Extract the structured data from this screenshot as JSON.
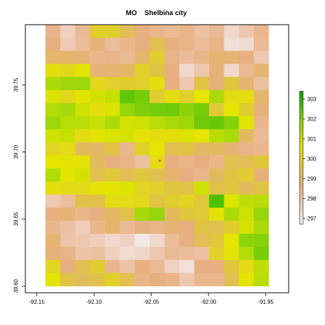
{
  "chart_data": {
    "type": "heatmap",
    "title": "MO    Shelbina city",
    "xlabel": "",
    "ylabel": "",
    "xlim": [
      -92.16,
      -91.93
    ],
    "ylim": [
      39.595,
      39.795
    ],
    "raster_extent": {
      "xmin": -92.1425,
      "xmax": -91.9475,
      "ymin": 39.6,
      "ymax": 39.795
    },
    "x_ticks": [
      {
        "value": -92.15,
        "label": "-92.15"
      },
      {
        "value": -92.1,
        "label": "-92.10"
      },
      {
        "value": -92.05,
        "label": "-92.05"
      },
      {
        "value": -92.0,
        "label": "-92.00"
      },
      {
        "value": -91.95,
        "label": "-91.95"
      }
    ],
    "y_ticks": [
      {
        "value": 39.6,
        "label": "39.60"
      },
      {
        "value": 39.65,
        "label": "39.65"
      },
      {
        "value": 39.7,
        "label": "39.70"
      },
      {
        "value": 39.75,
        "label": "39.75"
      }
    ],
    "legend": {
      "placement": "right",
      "min": 296.7,
      "max": 303.4,
      "ticks": [
        {
          "value": 297,
          "label": "297"
        },
        {
          "value": 298,
          "label": "298"
        },
        {
          "value": 299,
          "label": "299"
        },
        {
          "value": 300,
          "label": "300"
        },
        {
          "value": 301,
          "label": "301"
        },
        {
          "value": 302,
          "label": "302"
        },
        {
          "value": 303,
          "label": "303"
        }
      ]
    },
    "colormap": [
      "#f2f2f2",
      "#efcfbe",
      "#e8b07f",
      "#dfc53f",
      "#e6e600",
      "#a6d90a",
      "#5cc609",
      "#00a600"
    ],
    "point": {
      "x": -92.0425,
      "y": 39.6935,
      "color": "#ff0000"
    },
    "rows": 20,
    "cols": 15,
    "grid": [
      [
        298.5,
        297.6,
        298.3,
        299.9,
        299.9,
        299.2,
        298.6,
        298.4,
        298.3,
        298.5,
        298.1,
        298.3,
        297.4,
        297.9,
        298.4
      ],
      [
        298.6,
        297.8,
        298.2,
        298.7,
        298.2,
        298.4,
        298.6,
        299.3,
        298.6,
        298.5,
        298.2,
        298.5,
        297.2,
        297.3,
        298.3
      ],
      [
        298.9,
        298.9,
        298.8,
        298.4,
        298.5,
        298.3,
        298.9,
        299.8,
        298.5,
        298.2,
        298.4,
        298.8,
        298.8,
        298.6,
        297.9
      ],
      [
        300.3,
        300.1,
        300.6,
        298.7,
        298.8,
        299.0,
        299.9,
        299.5,
        298.6,
        297.4,
        297.9,
        298.7,
        297.4,
        298.3,
        298.8
      ],
      [
        301.4,
        301.6,
        301.6,
        300.1,
        299.9,
        299.8,
        299.9,
        300.3,
        298.6,
        297.9,
        299.5,
        298.7,
        299.6,
        298.8,
        298.1
      ],
      [
        300.7,
        300.1,
        300.6,
        300.8,
        301.0,
        302.4,
        302.1,
        299.8,
        300.3,
        299.9,
        300.5,
        301.4,
        300.2,
        300.3,
        298.9
      ],
      [
        301.3,
        301.5,
        300.9,
        300.3,
        300.7,
        301.7,
        302.0,
        302.1,
        302.2,
        301.8,
        302.1,
        299.7,
        300.5,
        299.8,
        298.7
      ],
      [
        301.6,
        301.2,
        301.2,
        301.0,
        301.4,
        300.8,
        300.9,
        301.2,
        301.4,
        301.6,
        302.2,
        302.3,
        301.9,
        300.6,
        298.4
      ],
      [
        300.9,
        301.0,
        300.2,
        300.6,
        300.7,
        300.8,
        300.4,
        300.3,
        300.3,
        300.7,
        300.5,
        301.2,
        301.4,
        299.1,
        298.3
      ],
      [
        300.0,
        300.2,
        299.1,
        299.0,
        299.5,
        298.4,
        299.9,
        300.5,
        299.3,
        299.5,
        299.0,
        299.1,
        298.8,
        298.5,
        298.4
      ],
      [
        300.5,
        300.6,
        300.4,
        299.1,
        298.6,
        298.5,
        298.1,
        300.2,
        298.6,
        298.5,
        298.6,
        298.4,
        299.3,
        299.2,
        299.6
      ],
      [
        301.3,
        300.6,
        300.8,
        299.3,
        299.7,
        299.2,
        299.6,
        299.3,
        298.9,
        298.6,
        298.4,
        299.1,
        299.5,
        299.8,
        298.7
      ],
      [
        300.3,
        300.2,
        300.2,
        300.4,
        300.6,
        300.7,
        300.0,
        299.9,
        299.6,
        299.4,
        300.9,
        299.4,
        299.6,
        299.1,
        299.5
      ],
      [
        297.9,
        298.2,
        299.4,
        299.4,
        300.2,
        300.2,
        300.1,
        299.5,
        299.8,
        300.0,
        299.7,
        302.6,
        300.7,
        301.1,
        301.2
      ],
      [
        298.6,
        298.8,
        298.4,
        298.6,
        299.0,
        299.4,
        301.5,
        301.7,
        299.1,
        299.6,
        299.7,
        300.4,
        301.4,
        300.9,
        301.7
      ],
      [
        298.4,
        298.1,
        297.7,
        298.4,
        298.9,
        298.3,
        298.6,
        298.5,
        298.8,
        298.6,
        299.5,
        299.3,
        299.8,
        300.8,
        301.4
      ],
      [
        298.8,
        298.0,
        297.9,
        297.7,
        297.4,
        297.6,
        296.9,
        297.4,
        298.2,
        298.6,
        299.2,
        299.6,
        300.5,
        301.8,
        301.9
      ],
      [
        298.7,
        298.5,
        298.0,
        298.1,
        297.6,
        297.3,
        297.5,
        297.9,
        298.3,
        298.2,
        298.1,
        299.9,
        300.4,
        301.3,
        302.1
      ],
      [
        300.0,
        298.6,
        299.3,
        299.8,
        298.4,
        298.0,
        298.6,
        298.3,
        297.6,
        297.2,
        298.6,
        298.6,
        299.6,
        300.2,
        301.1
      ],
      [
        300.6,
        299.5,
        299.1,
        299.4,
        299.9,
        299.3,
        298.5,
        298.6,
        298.5,
        297.9,
        298.4,
        298.4,
        299.3,
        300.6,
        301.2
      ]
    ]
  }
}
